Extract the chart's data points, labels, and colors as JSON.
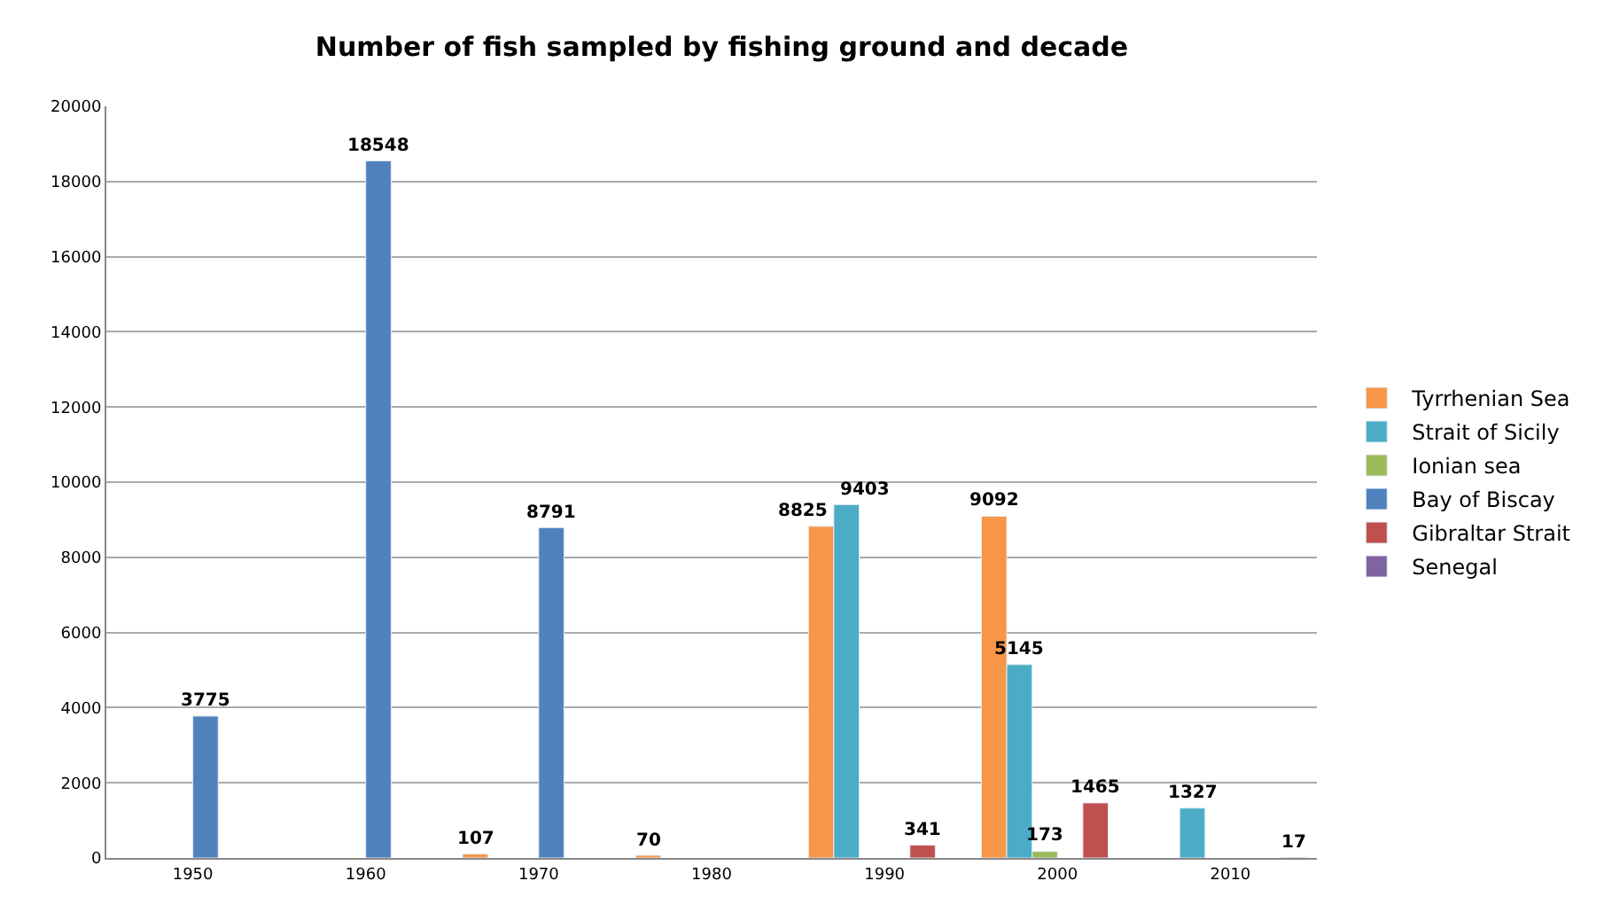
{
  "chart_data": {
    "type": "bar",
    "title": "Number of fish sampled by fishing ground and decade",
    "categories": [
      "1950",
      "1960",
      "1970",
      "1980",
      "1990",
      "2000",
      "2010"
    ],
    "series": [
      {
        "name": "Tyrrhenian Sea",
        "color": "#f79646",
        "values": [
          null,
          null,
          107,
          70,
          8825,
          9092,
          null
        ]
      },
      {
        "name": "Strait of Sicily",
        "color": "#4bacc6",
        "values": [
          null,
          null,
          null,
          null,
          9403,
          5145,
          1327
        ]
      },
      {
        "name": "Ionian sea",
        "color": "#9bbb59",
        "values": [
          null,
          null,
          null,
          null,
          null,
          173,
          null
        ]
      },
      {
        "name": "Bay of Biscay",
        "color": "#4f81bd",
        "values": [
          3775,
          18548,
          8791,
          null,
          null,
          null,
          null
        ]
      },
      {
        "name": "Gibraltar Strait",
        "color": "#c0504d",
        "values": [
          null,
          null,
          null,
          null,
          341,
          1465,
          null
        ]
      },
      {
        "name": "Senegal",
        "color": "#8064a2",
        "values": [
          null,
          null,
          null,
          null,
          null,
          null,
          17
        ]
      }
    ],
    "ylim": [
      0,
      20000
    ],
    "yticks": [
      0,
      2000,
      4000,
      6000,
      8000,
      10000,
      12000,
      14000,
      16000,
      18000,
      20000
    ],
    "grid": "y",
    "legend": "right",
    "data_labels": true
  }
}
